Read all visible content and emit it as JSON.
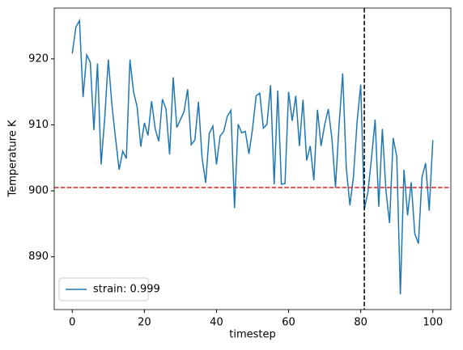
{
  "chart_data": {
    "type": "line",
    "xlabel": "timestep",
    "ylabel": "Temperature K",
    "x": [
      0,
      1,
      2,
      3,
      4,
      5,
      6,
      7,
      8,
      9,
      10,
      11,
      12,
      13,
      14,
      15,
      16,
      17,
      18,
      19,
      20,
      21,
      22,
      23,
      24,
      25,
      26,
      27,
      28,
      29,
      30,
      31,
      32,
      33,
      34,
      35,
      36,
      37,
      38,
      39,
      40,
      41,
      42,
      43,
      44,
      45,
      46,
      47,
      48,
      49,
      50,
      51,
      52,
      53,
      54,
      55,
      56,
      57,
      58,
      59,
      60,
      61,
      62,
      63,
      64,
      65,
      66,
      67,
      68,
      69,
      70,
      71,
      72,
      73,
      74,
      75,
      76,
      77,
      78,
      79,
      80,
      81,
      82,
      83,
      84,
      85,
      86,
      87,
      88,
      89,
      90,
      91,
      92,
      93,
      94,
      95,
      96,
      97,
      98,
      99,
      100
    ],
    "series": [
      {
        "name": "strain: 0.999",
        "color": "#1f77b4",
        "values": [
          920.8,
          924.8,
          925.8,
          914.2,
          920.6,
          919.5,
          909.2,
          919.3,
          904.0,
          911.0,
          919.9,
          913.0,
          908.0,
          903.2,
          906.0,
          904.9,
          919.9,
          915.0,
          912.7,
          906.7,
          910.3,
          908.4,
          913.6,
          909.4,
          907.5,
          913.9,
          912.4,
          905.5,
          917.2,
          909.6,
          910.8,
          912.0,
          915.4,
          907.0,
          907.7,
          913.5,
          905.0,
          901.2,
          908.7,
          909.8,
          904.0,
          908.3,
          909.0,
          911.3,
          912.2,
          897.4,
          910.1,
          908.8,
          909.0,
          905.6,
          909.4,
          914.4,
          914.8,
          909.5,
          910.1,
          916.0,
          901.0,
          915.2,
          901.0,
          901.1,
          915.0,
          910.6,
          914.4,
          906.8,
          913.8,
          904.6,
          906.8,
          901.6,
          912.3,
          906.8,
          910.0,
          912.4,
          908.0,
          900.5,
          910.0,
          917.8,
          903.5,
          897.8,
          902.2,
          910.5,
          916.1,
          897.2,
          899.8,
          905.0,
          910.8,
          897.6,
          909.4,
          900.0,
          895.1,
          908.0,
          905.2,
          884.3,
          903.2,
          896.3,
          901.3,
          893.5,
          892.0,
          902.1,
          904.2,
          897.0,
          907.7
        ]
      }
    ],
    "hline": 900.5,
    "hline_color": "#d62728",
    "vline": 81,
    "vline_color": "#000000",
    "xlim": [
      -5,
      105
    ],
    "ylim": [
      882,
      927.7
    ],
    "xticks": [
      0,
      20,
      40,
      60,
      80,
      100
    ],
    "yticks": [
      890,
      900,
      910,
      920
    ],
    "legend": "lower left"
  }
}
